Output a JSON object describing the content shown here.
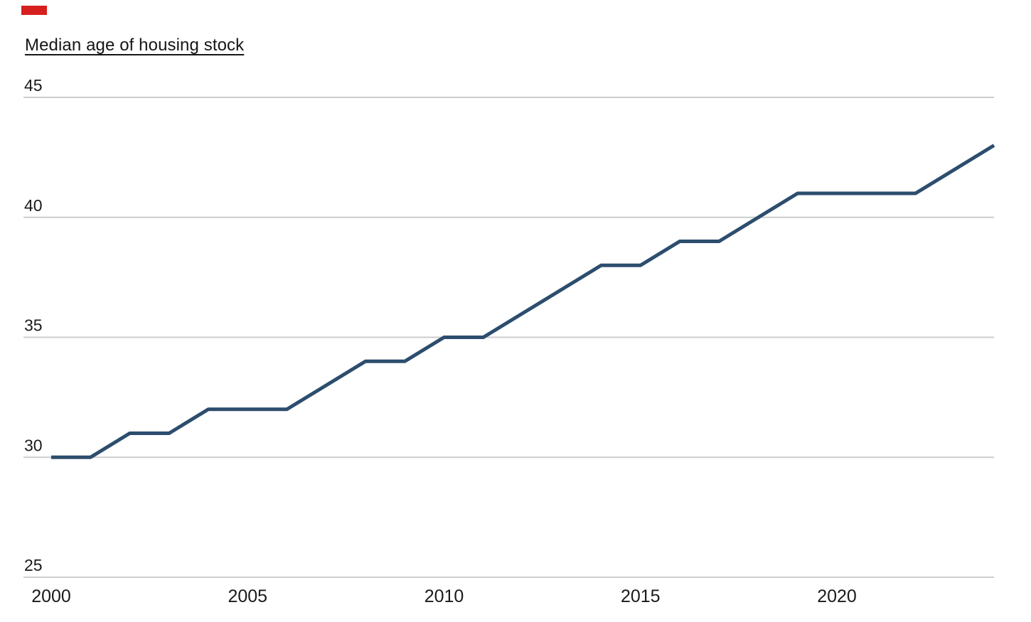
{
  "branding": {
    "red_chip_color": "#d6201f"
  },
  "colors": {
    "line": "#2c4d6e",
    "gridline": "#cdcdcd",
    "text": "#1a1a1a",
    "title_text": "#161616",
    "background": "#ffffff"
  },
  "chart_data": {
    "type": "line",
    "title": "Median age of housing stock",
    "x": [
      2000,
      2001,
      2002,
      2003,
      2004,
      2005,
      2006,
      2007,
      2008,
      2009,
      2010,
      2011,
      2012,
      2013,
      2014,
      2015,
      2016,
      2017,
      2018,
      2019,
      2020,
      2021,
      2022,
      2023,
      2024
    ],
    "values": [
      30,
      30,
      31,
      31,
      32,
      32,
      32,
      33,
      34,
      34,
      35,
      35,
      36,
      37,
      38,
      38,
      39,
      39,
      40,
      41,
      41,
      41,
      41,
      42,
      43
    ],
    "y_ticks": [
      45,
      40,
      35,
      30,
      25
    ],
    "x_ticks": [
      2000,
      2005,
      2010,
      2015,
      2020
    ],
    "ylim": [
      25,
      45
    ],
    "xlim": [
      2000,
      2024
    ],
    "xlabel": "",
    "ylabel": "",
    "grid": "horizontal-only",
    "legend": "none",
    "line_color": "#2c4d6e"
  }
}
